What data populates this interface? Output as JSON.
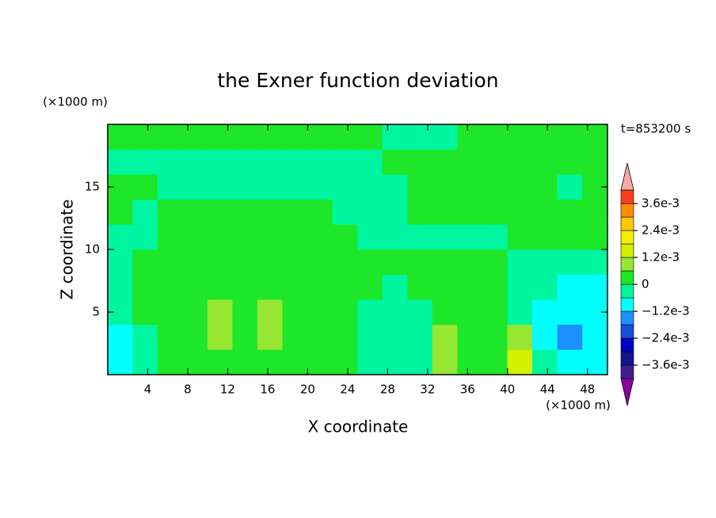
{
  "chart_data": {
    "type": "contour",
    "title": "the Exner function deviation",
    "x_label": "X coordinate",
    "y_label": "Z coordinate",
    "x_unit": "(×1000 m)",
    "y_unit": "(×1000 m)",
    "time_label": "t=853200 s",
    "xlim": [
      0,
      50
    ],
    "ylim": [
      0,
      20
    ],
    "xticks": [
      4,
      8,
      12,
      16,
      20,
      24,
      28,
      32,
      36,
      40,
      44,
      48
    ],
    "yticks": [
      5,
      10,
      15
    ],
    "x": [
      1.25,
      3.75,
      6.25,
      8.75,
      11.25,
      13.75,
      16.25,
      18.75,
      21.25,
      23.75,
      26.25,
      28.75,
      31.25,
      33.75,
      36.25,
      38.75,
      41.25,
      43.75,
      46.25,
      48.75
    ],
    "y": [
      1,
      3,
      5,
      7,
      9,
      11,
      13,
      15,
      17,
      19
    ],
    "z": [
      [
        -0.0009,
        -0.0003,
        0.0003,
        0.0003,
        0.0003,
        0.0003,
        0.0003,
        0.0003,
        0.0003,
        0.0003,
        -0.0003,
        -0.0003,
        -0.0003,
        0.0009,
        0.0003,
        0.0003,
        0.0015,
        -0.0003,
        -0.0009,
        -0.0009
      ],
      [
        -0.0009,
        -0.0003,
        0.0003,
        0.0003,
        0.0009,
        0.0003,
        0.0009,
        0.0003,
        0.0003,
        0.0003,
        -0.0003,
        -0.0003,
        -0.0003,
        0.0009,
        0.0003,
        0.0003,
        0.0009,
        -0.0009,
        -0.0015,
        -0.0009
      ],
      [
        -0.0003,
        0.0003,
        0.0003,
        0.0003,
        0.0009,
        0.0003,
        0.0009,
        0.0003,
        0.0003,
        0.0003,
        -0.0003,
        -0.0003,
        -0.0003,
        0.0003,
        0.0003,
        0.0003,
        -0.0003,
        -0.0009,
        -0.0009,
        -0.0009
      ],
      [
        -0.0003,
        0.0003,
        0.0003,
        0.0003,
        0.0003,
        0.0003,
        0.0003,
        0.0003,
        0.0003,
        0.0003,
        0.0003,
        -0.0003,
        0.0003,
        0.0003,
        0.0003,
        0.0003,
        -0.0003,
        -0.0003,
        -0.0009,
        -0.0009
      ],
      [
        -0.0003,
        0.0003,
        0.0003,
        0.0003,
        0.0003,
        0.0003,
        0.0003,
        0.0003,
        0.0003,
        0.0003,
        0.0003,
        0.0003,
        0.0003,
        0.0003,
        0.0003,
        0.0003,
        -0.0003,
        -0.0003,
        -0.0003,
        -0.0003
      ],
      [
        -0.0003,
        -0.0003,
        0.0003,
        0.0003,
        0.0003,
        0.0003,
        0.0003,
        0.0003,
        0.0003,
        0.0003,
        -0.0003,
        -0.0003,
        -0.0003,
        -0.0003,
        -0.0003,
        -0.0003,
        0.0003,
        0.0003,
        0.0003,
        0.0003
      ],
      [
        0.0003,
        -0.0003,
        0.0003,
        0.0003,
        0.0003,
        0.0003,
        0.0003,
        0.0003,
        0.0003,
        -0.0003,
        -0.0003,
        -0.0003,
        0.0003,
        0.0003,
        0.0003,
        0.0003,
        0.0003,
        0.0003,
        0.0003,
        0.0003
      ],
      [
        0.0003,
        0.0003,
        -0.0003,
        -0.0003,
        -0.0003,
        -0.0003,
        -0.0003,
        -0.0003,
        -0.0003,
        -0.0003,
        -0.0003,
        -0.0003,
        0.0003,
        0.0003,
        0.0003,
        0.0003,
        0.0003,
        0.0003,
        -0.0003,
        0.0003
      ],
      [
        -0.0003,
        -0.0003,
        -0.0003,
        -0.0003,
        -0.0003,
        -0.0003,
        -0.0003,
        -0.0003,
        -0.0003,
        -0.0003,
        -0.0003,
        0.0003,
        0.0003,
        0.0003,
        0.0003,
        0.0003,
        0.0003,
        0.0003,
        0.0003,
        0.0003
      ],
      [
        0.0003,
        0.0003,
        0.0003,
        0.0003,
        0.0003,
        0.0003,
        0.0003,
        0.0003,
        0.0003,
        0.0003,
        0.0003,
        -0.0003,
        -0.0003,
        -0.0003,
        0.0003,
        0.0003,
        0.0003,
        0.0003,
        0.0003,
        0.0003
      ]
    ],
    "levels": [
      -0.0042,
      -0.0036,
      -0.003,
      -0.0024,
      -0.0018,
      -0.0012,
      -0.0006,
      0,
      0.0006,
      0.0012,
      0.0018,
      0.0024,
      0.003,
      0.0036,
      0.0042
    ],
    "colors": [
      "#8c00a0",
      "#3c1e8c",
      "#14148c",
      "#0000c8",
      "#1450dc",
      "#1e90ff",
      "#00ffff",
      "#00f5a0",
      "#1ee628",
      "#96e632",
      "#d2f000",
      "#f0f000",
      "#ffc800",
      "#ff8c00",
      "#ff3c1e",
      "#f5aaaa"
    ],
    "colorbar_ticks": [
      {
        "value": 0.0036,
        "label": "3.6e-3"
      },
      {
        "value": 0.0024,
        "label": "2.4e-3"
      },
      {
        "value": 0.0012,
        "label": "1.2e-3"
      },
      0,
      {
        "value": -0.0012,
        "label": "−1.2e-3"
      },
      {
        "value": -0.0024,
        "label": "−2.4e-3"
      },
      {
        "value": -0.0036,
        "label": "−3.6e-3"
      }
    ]
  }
}
